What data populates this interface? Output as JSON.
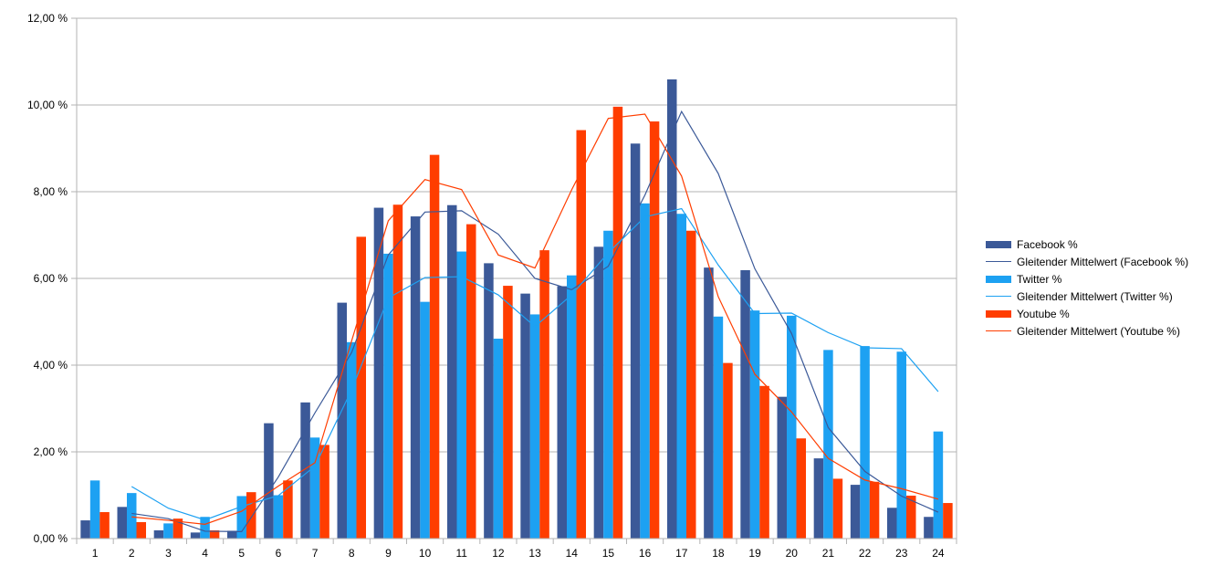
{
  "colors": {
    "facebook": "#3b5998",
    "twitter": "#1da1f2",
    "youtube": "#ff3d00",
    "grid": "#b3b3b3",
    "axis": "#b3b3b3"
  },
  "chart_data": {
    "type": "bar",
    "categories": [
      "1",
      "2",
      "3",
      "4",
      "5",
      "6",
      "7",
      "8",
      "9",
      "10",
      "11",
      "12",
      "13",
      "14",
      "15",
      "16",
      "17",
      "18",
      "19",
      "20",
      "21",
      "22",
      "23",
      "24"
    ],
    "series": [
      {
        "name": "Facebook %",
        "type": "bar",
        "color_key": "facebook",
        "values": [
          0.42,
          0.73,
          0.19,
          0.14,
          0.18,
          2.66,
          3.14,
          5.44,
          7.63,
          7.43,
          7.69,
          6.35,
          5.65,
          5.82,
          6.73,
          9.11,
          10.59,
          6.25,
          6.19,
          3.27,
          1.85,
          1.24,
          0.71,
          0.5
        ]
      },
      {
        "name": "Twitter %",
        "type": "bar",
        "color_key": "twitter",
        "values": [
          1.34,
          1.05,
          0.35,
          0.5,
          0.98,
          1.0,
          2.33,
          4.53,
          6.57,
          5.46,
          6.62,
          4.61,
          5.17,
          6.07,
          7.1,
          7.73,
          7.49,
          5.12,
          5.26,
          5.14,
          4.35,
          4.44,
          4.31,
          2.47
        ]
      },
      {
        "name": "Youtube %",
        "type": "bar",
        "color_key": "youtube",
        "values": [
          0.61,
          0.38,
          0.46,
          0.19,
          1.07,
          1.34,
          2.16,
          6.96,
          7.7,
          8.85,
          7.25,
          5.83,
          6.65,
          9.42,
          9.96,
          9.62,
          7.1,
          4.05,
          3.52,
          2.31,
          1.38,
          1.31,
          0.99,
          0.82
        ]
      },
      {
        "name": "Gleitender Mittelwert (Facebook %)",
        "type": "line",
        "color_key": "facebook",
        "x": [
          "2",
          "3",
          "4",
          "5",
          "6",
          "7",
          "8",
          "9",
          "10",
          "11",
          "12",
          "13",
          "14",
          "15",
          "16",
          "17",
          "18",
          "19",
          "20",
          "21",
          "22",
          "23",
          "24"
        ],
        "values": [
          0.58,
          0.46,
          0.17,
          0.16,
          1.42,
          2.9,
          4.29,
          6.54,
          7.53,
          7.56,
          7.02,
          6.0,
          5.74,
          6.28,
          7.92,
          9.85,
          8.42,
          6.22,
          4.73,
          2.56,
          1.55,
          0.98,
          0.61
        ]
      },
      {
        "name": "Gleitender Mittelwert (Twitter %)",
        "type": "line",
        "color_key": "twitter",
        "x": [
          "2",
          "3",
          "4",
          "5",
          "6",
          "7",
          "8",
          "9",
          "10",
          "11",
          "12",
          "13",
          "14",
          "15",
          "16",
          "17",
          "18",
          "19",
          "20",
          "21",
          "22",
          "23",
          "24"
        ],
        "values": [
          1.2,
          0.7,
          0.43,
          0.74,
          0.99,
          1.67,
          3.43,
          5.55,
          6.02,
          6.04,
          5.62,
          4.89,
          5.62,
          6.59,
          7.42,
          7.61,
          6.31,
          5.19,
          5.2,
          4.75,
          4.4,
          4.38,
          3.39
        ]
      },
      {
        "name": "Gleitender Mittelwert (Youtube %)",
        "type": "line",
        "color_key": "youtube",
        "x": [
          "2",
          "3",
          "4",
          "5",
          "6",
          "7",
          "8",
          "9",
          "10",
          "11",
          "12",
          "13",
          "14",
          "15",
          "16",
          "17",
          "18",
          "19",
          "20",
          "21",
          "22",
          "23",
          "24"
        ],
        "values": [
          0.5,
          0.42,
          0.33,
          0.63,
          1.21,
          1.75,
          4.56,
          7.33,
          8.28,
          8.05,
          6.54,
          6.24,
          8.04,
          9.69,
          9.79,
          8.36,
          5.58,
          3.79,
          2.92,
          1.85,
          1.35,
          1.15,
          0.91
        ]
      }
    ],
    "title": "",
    "xlabel": "",
    "ylabel": "",
    "ylim": [
      0,
      12
    ],
    "yticks": [
      0,
      2,
      4,
      6,
      8,
      10,
      12
    ],
    "ytick_labels": [
      "0,00 %",
      "2,00 %",
      "4,00 %",
      "6,00 %",
      "8,00 %",
      "10,00 %",
      "12,00 %"
    ],
    "grid": true,
    "legend_position": "right"
  }
}
